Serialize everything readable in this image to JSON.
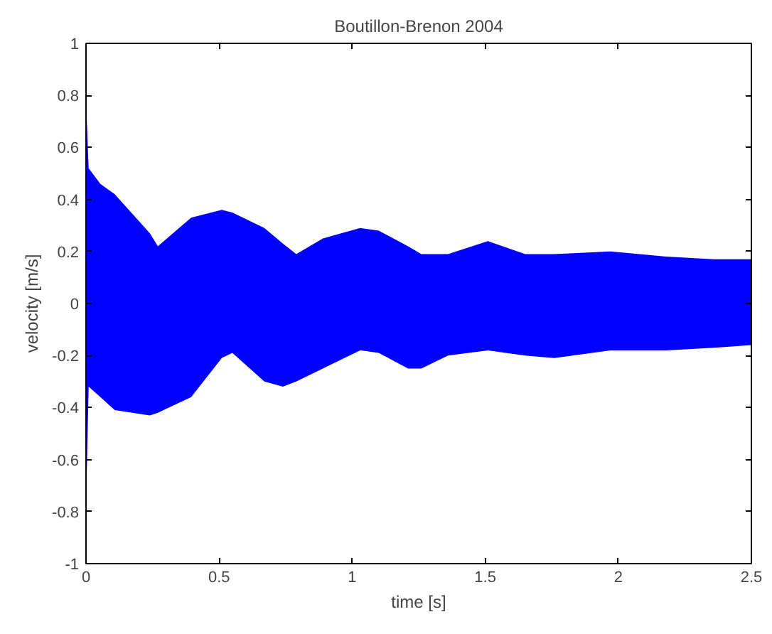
{
  "chart_data": {
    "type": "area",
    "title": "Boutillon-Brenon 2004",
    "xlabel": "time [s]",
    "ylabel": "velocity [m/s]",
    "xlim": [
      0,
      2.5
    ],
    "ylim": [
      -1,
      1
    ],
    "xticks": [
      0,
      0.5,
      1,
      1.5,
      2,
      2.5
    ],
    "yticks": [
      -1,
      -0.8,
      -0.6,
      -0.4,
      -0.2,
      0,
      0.2,
      0.4,
      0.6,
      0.8,
      1
    ],
    "grid": false,
    "x": [
      0,
      0.01,
      0.054,
      0.108,
      0.24,
      0.27,
      0.395,
      0.51,
      0.55,
      0.67,
      0.74,
      0.79,
      0.89,
      1.03,
      1.1,
      1.21,
      1.26,
      1.36,
      1.51,
      1.65,
      1.76,
      1.97,
      2.18,
      2.36,
      2.5
    ],
    "series": [
      {
        "color": "#0000ff",
        "values": [
          0.78,
          0.52,
          0.46,
          0.42,
          0.27,
          0.22,
          0.33,
          0.36,
          0.35,
          0.29,
          0.23,
          0.19,
          0.25,
          0.29,
          0.28,
          0.22,
          0.19,
          0.19,
          0.24,
          0.19,
          0.19,
          0.2,
          0.18,
          0.17,
          0.17
        ]
      },
      {
        "color": "#0000ff",
        "values": [
          -0.78,
          -0.32,
          -0.36,
          -0.41,
          -0.43,
          -0.42,
          -0.36,
          -0.21,
          -0.19,
          -0.3,
          -0.32,
          -0.3,
          -0.25,
          -0.18,
          -0.19,
          -0.25,
          -0.25,
          -0.2,
          -0.18,
          -0.2,
          -0.21,
          -0.18,
          -0.18,
          -0.17,
          -0.16
        ]
      }
    ]
  }
}
